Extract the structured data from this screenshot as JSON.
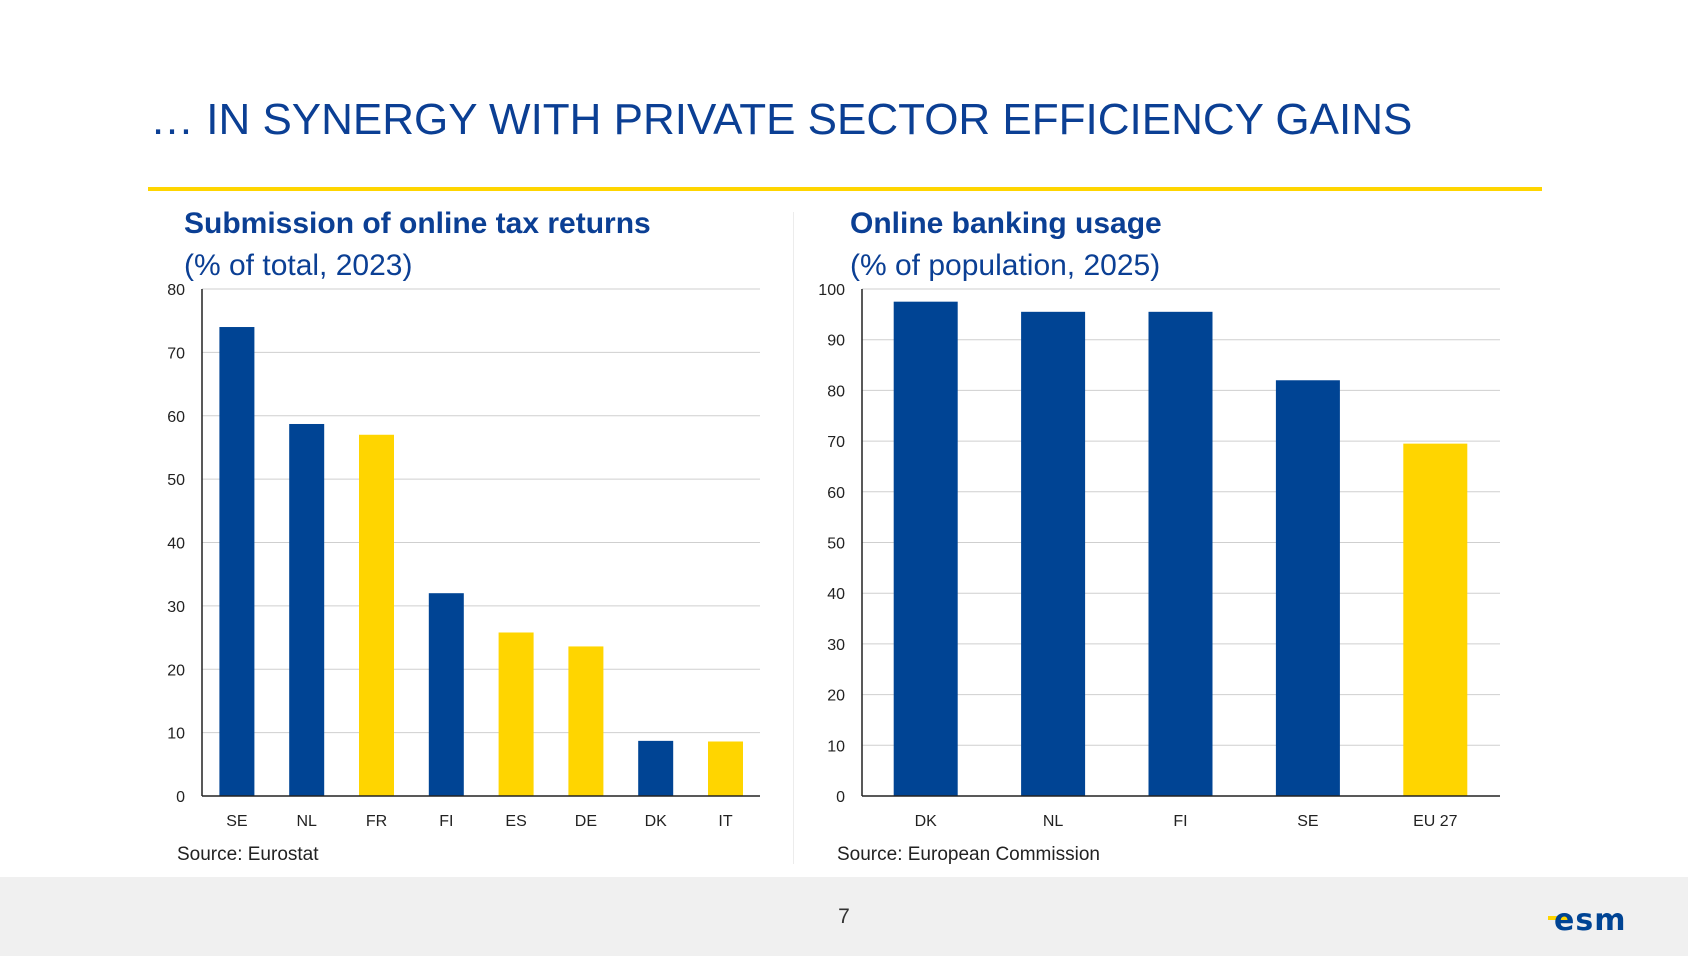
{
  "slide": {
    "title": "… IN SYNERGY WITH PRIVATE SECTOR EFFICIENCY GAINS",
    "page_number": "7",
    "logo_text": "esm",
    "colors": {
      "blue": "#004494",
      "yellow": "#ffd500",
      "title": "#0b3f94"
    }
  },
  "chart_data": [
    {
      "type": "bar",
      "title": "Submission of online tax returns",
      "subtitle": "(% of total, 2023)",
      "categories": [
        "SE",
        "NL",
        "FR",
        "FI",
        "ES",
        "DE",
        "DK",
        "IT"
      ],
      "values": [
        74,
        58.7,
        57,
        32,
        25.8,
        23.6,
        8.7,
        8.6
      ],
      "highlight": [
        false,
        false,
        true,
        false,
        true,
        true,
        false,
        true
      ],
      "ylim": [
        0,
        80
      ],
      "yticks": [
        0,
        10,
        20,
        30,
        40,
        50,
        60,
        70,
        80
      ],
      "grid": true,
      "source": "Source: Eurostat"
    },
    {
      "type": "bar",
      "title": "Online banking usage",
      "subtitle": "(% of population, 2025)",
      "categories": [
        "DK",
        "NL",
        "FI",
        "SE",
        "EU 27"
      ],
      "values": [
        97.5,
        95.5,
        95.5,
        82,
        69.5
      ],
      "highlight": [
        false,
        false,
        false,
        false,
        true
      ],
      "ylim": [
        0,
        100
      ],
      "yticks": [
        0,
        10,
        20,
        30,
        40,
        50,
        60,
        70,
        80,
        90,
        100
      ],
      "grid": true,
      "source": "Source: European Commission"
    }
  ]
}
